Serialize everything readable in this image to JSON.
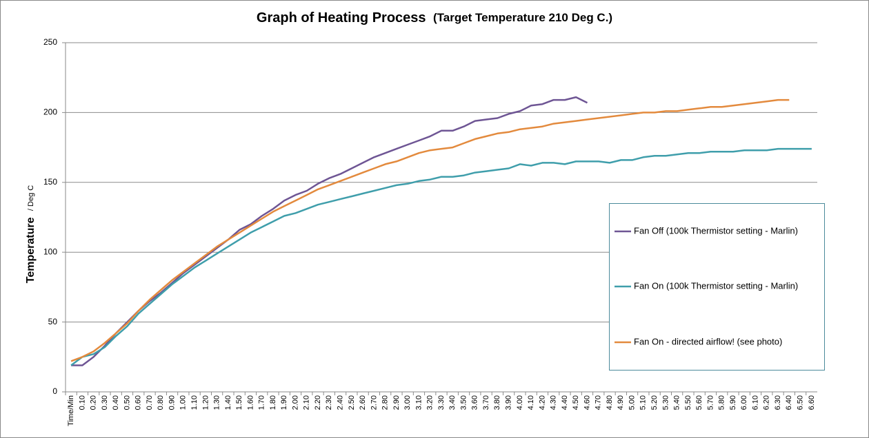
{
  "chart_data": {
    "type": "line",
    "title": "Graph of Heating Process",
    "subtitle": "(Target Temperature  210 Deg C.)",
    "y_label": "Temperature",
    "y_label_unit": "/ Deg C",
    "categories": [
      "Time/Min",
      "0.10",
      "0.20",
      "0.30",
      "0.40",
      "0.50",
      "0.60",
      "0.70",
      "0.80",
      "0.90",
      "1.00",
      "1.10",
      "1.20",
      "1.30",
      "1.40",
      "1.50",
      "1.60",
      "1.70",
      "1.80",
      "1.90",
      "2.00",
      "2.10",
      "2.20",
      "2.30",
      "2.40",
      "2.50",
      "2.60",
      "2.70",
      "2.80",
      "2.90",
      "3.00",
      "3.10",
      "3.20",
      "3.30",
      "3.40",
      "3.50",
      "3.60",
      "3.70",
      "3.80",
      "3.90",
      "4.00",
      "4.10",
      "4.20",
      "4.30",
      "4.40",
      "4.50",
      "4.60",
      "4.70",
      "4.80",
      "4.90",
      "5.00",
      "5.10",
      "5.20",
      "5.30",
      "5.40",
      "5.50",
      "5.60",
      "5.70",
      "5.80",
      "5.90",
      "6.00",
      "6.10",
      "6.20",
      "6.30",
      "6.40",
      "6.50",
      "6.60"
    ],
    "series": [
      {
        "name": "Fan Off (100k Thermistor setting - Marlin)",
        "color": "#6e5594",
        "values": [
          19,
          19,
          25,
          33,
          42,
          50,
          58,
          65,
          71,
          78,
          85,
          91,
          97,
          103,
          109,
          116,
          120,
          126,
          131,
          137,
          141,
          144,
          149,
          153,
          156,
          160,
          164,
          168,
          171,
          174,
          177,
          180,
          183,
          187,
          187,
          190,
          194,
          195,
          196,
          199,
          201,
          205,
          206,
          209,
          209,
          211,
          207,
          null,
          null,
          null,
          null,
          null,
          null,
          null,
          null,
          null,
          null,
          null,
          null,
          null,
          null,
          null,
          null,
          null,
          null,
          null,
          null
        ]
      },
      {
        "name": "Fan On (100k Thermistor setting - Marlin)",
        "color": "#3f9eab",
        "values": [
          19,
          25,
          27,
          32,
          40,
          47,
          56,
          63,
          70,
          77,
          83,
          89,
          94,
          99,
          104,
          109,
          114,
          118,
          122,
          126,
          128,
          131,
          134,
          136,
          138,
          140,
          142,
          144,
          146,
          148,
          149,
          151,
          152,
          154,
          154,
          155,
          157,
          158,
          159,
          160,
          163,
          162,
          164,
          164,
          163,
          165,
          165,
          165,
          164,
          166,
          166,
          168,
          169,
          169,
          170,
          171,
          171,
          172,
          172,
          172,
          173,
          173,
          173,
          174,
          174,
          174,
          174
        ]
      },
      {
        "name": "Fan On - directed airflow! (see photo)",
        "color": "#e38a3d",
        "values": [
          22,
          25,
          29,
          35,
          42,
          49,
          58,
          66,
          73,
          80,
          86,
          92,
          98,
          104,
          109,
          114,
          119,
          124,
          129,
          133,
          137,
          141,
          145,
          148,
          151,
          154,
          157,
          160,
          163,
          165,
          168,
          171,
          173,
          174,
          175,
          178,
          181,
          183,
          185,
          186,
          188,
          189,
          190,
          192,
          193,
          194,
          195,
          196,
          197,
          198,
          199,
          200,
          200,
          201,
          201,
          202,
          203,
          204,
          204,
          205,
          206,
          207,
          208,
          209,
          209,
          null,
          null
        ]
      }
    ],
    "ylim": [
      0,
      250
    ],
    "yticks": [
      0,
      50,
      100,
      150,
      200,
      250
    ],
    "grid": true
  }
}
